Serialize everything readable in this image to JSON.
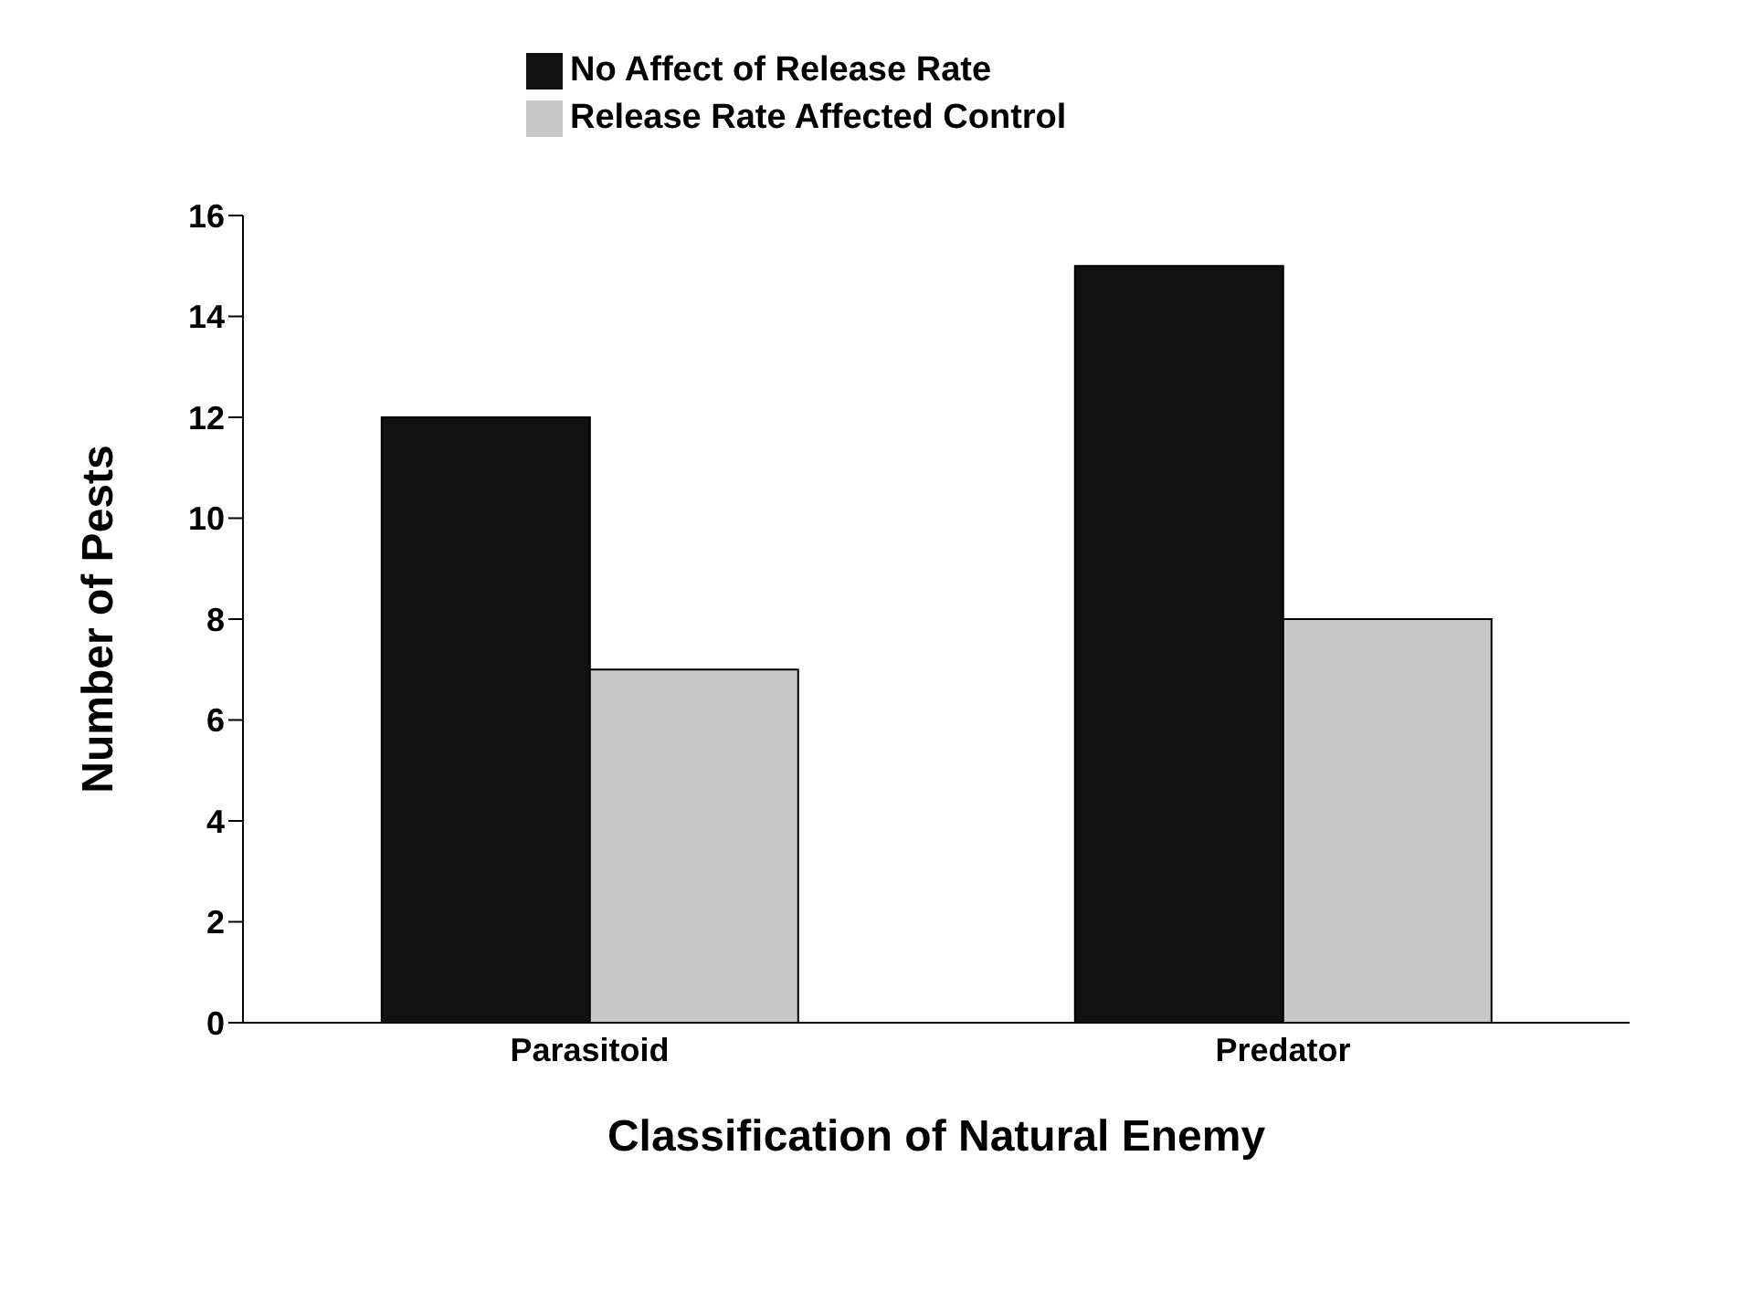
{
  "chart_data": {
    "type": "bar",
    "xlabel": "Classification of Natural Enemy",
    "ylabel": "Number of Pests",
    "categories": [
      "Parasitoid",
      "Predator"
    ],
    "series": [
      {
        "name": "No Affect of Release Rate",
        "color": "#111111",
        "values": [
          12,
          15
        ]
      },
      {
        "name": "Release Rate Affected Control",
        "color": "#c8c8c8",
        "values": [
          7,
          8
        ]
      }
    ],
    "ylim": [
      0,
      16
    ],
    "yticks": [
      0,
      2,
      4,
      6,
      8,
      10,
      12,
      14,
      16
    ],
    "grid": false,
    "legend": "top"
  }
}
